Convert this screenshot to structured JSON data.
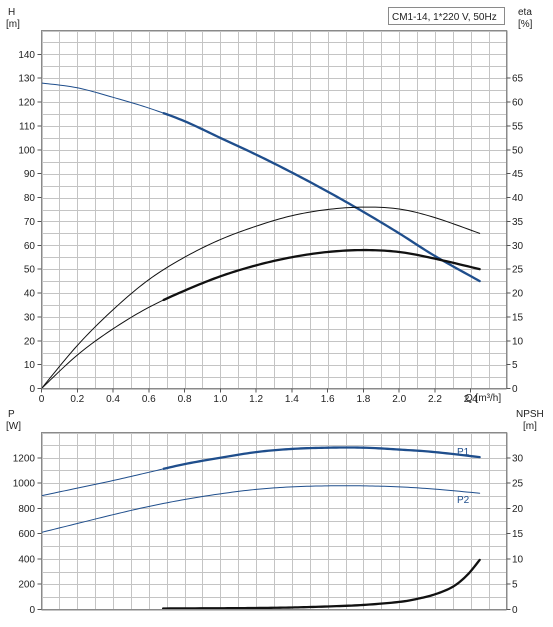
{
  "title_box": "CM1-14, 1*220 V, 50Hz",
  "colors": {
    "blue": "#1f4e8c",
    "black": "#111111",
    "grid": "#c4c4c4",
    "frame": "#8a8a8a"
  },
  "chart_data": [
    {
      "type": "line",
      "panel": "head-efficiency",
      "xlabel": "Q [m³/h]",
      "xlim": [
        0,
        2.6
      ],
      "x_ticks": [
        0,
        0.2,
        0.4,
        0.6,
        0.8,
        1.0,
        1.2,
        1.4,
        1.6,
        1.8,
        2.0,
        2.2,
        2.4
      ],
      "ylabel_left": "H",
      "ylabel_left_unit": "[m]",
      "ylim_left": [
        0,
        150
      ],
      "y_ticks_left": [
        0,
        10,
        20,
        30,
        40,
        50,
        60,
        70,
        80,
        90,
        100,
        110,
        120,
        130,
        140
      ],
      "ylabel_right": "eta",
      "ylabel_right_unit": "[%]",
      "ylim_right": [
        0,
        75
      ],
      "y_ticks_right": [
        0,
        5,
        10,
        15,
        20,
        25,
        30,
        35,
        40,
        45,
        50,
        55,
        60,
        65
      ],
      "grid": true,
      "series": [
        {
          "key": "H",
          "axis": "left",
          "color": "#1f4e8c",
          "x": [
            0,
            0.2,
            0.4,
            0.6,
            0.8,
            1.0,
            1.2,
            1.4,
            1.6,
            1.8,
            2.0,
            2.2,
            2.45
          ],
          "y": [
            128,
            126,
            122,
            117.5,
            112,
            105,
            98,
            90.5,
            82.5,
            74,
            65,
            55.5,
            45
          ],
          "bold_from": 0.68
        },
        {
          "key": "eta-thin",
          "axis": "right",
          "color": "#111111",
          "x": [
            0,
            0.2,
            0.4,
            0.6,
            0.8,
            1.0,
            1.2,
            1.4,
            1.6,
            1.8,
            2.0,
            2.2,
            2.45
          ],
          "y": [
            0,
            9,
            16.5,
            22.8,
            27.5,
            31.2,
            34,
            36.2,
            37.5,
            38,
            37.6,
            35.8,
            32.5
          ]
        },
        {
          "key": "eta-bold",
          "axis": "right",
          "color": "#111111",
          "x": [
            0,
            0.2,
            0.4,
            0.6,
            0.8,
            1.0,
            1.2,
            1.4,
            1.6,
            1.8,
            2.0,
            2.2,
            2.45
          ],
          "y": [
            0,
            7,
            12.5,
            17,
            20.5,
            23.5,
            25.8,
            27.5,
            28.6,
            29,
            28.6,
            27.2,
            25
          ],
          "bold_from": 0.68
        }
      ]
    },
    {
      "type": "line",
      "panel": "power-npsh",
      "xlim": [
        0,
        2.6
      ],
      "ylabel_left": "P",
      "ylabel_left_unit": "[W]",
      "ylim_left": [
        0,
        1400
      ],
      "y_ticks_left": [
        0,
        200,
        400,
        600,
        800,
        1000,
        1200
      ],
      "ylabel_right": "NPSH",
      "ylabel_right_unit": "[m]",
      "ylim_right": [
        0,
        35
      ],
      "y_ticks_right": [
        0,
        5,
        10,
        15,
        20,
        25,
        30
      ],
      "grid": true,
      "series": [
        {
          "name": "P1",
          "axis": "left",
          "color": "#1f4e8c",
          "x": [
            0,
            0.2,
            0.4,
            0.6,
            0.8,
            1.0,
            1.2,
            1.4,
            1.6,
            1.8,
            2.0,
            2.2,
            2.45
          ],
          "y": [
            900,
            960,
            1020,
            1085,
            1150,
            1200,
            1245,
            1270,
            1280,
            1280,
            1265,
            1245,
            1205
          ],
          "bold_from": 0.68
        },
        {
          "name": "P2",
          "axis": "left",
          "color": "#1f4e8c",
          "x": [
            0,
            0.2,
            0.4,
            0.6,
            0.8,
            1.0,
            1.2,
            1.4,
            1.6,
            1.8,
            2.0,
            2.2,
            2.45
          ],
          "y": [
            610,
            680,
            750,
            815,
            870,
            915,
            950,
            970,
            978,
            978,
            970,
            952,
            920
          ]
        },
        {
          "key": "NPSH",
          "axis": "right",
          "color": "#111111",
          "x": [
            0.68,
            1.0,
            1.2,
            1.4,
            1.6,
            1.8,
            2.0,
            2.1,
            2.2,
            2.3,
            2.38,
            2.45
          ],
          "y": [
            0.2,
            0.25,
            0.3,
            0.4,
            0.6,
            0.9,
            1.5,
            2.1,
            3.0,
            4.5,
            6.8,
            9.8
          ],
          "bold_from": 0.68
        }
      ]
    }
  ]
}
